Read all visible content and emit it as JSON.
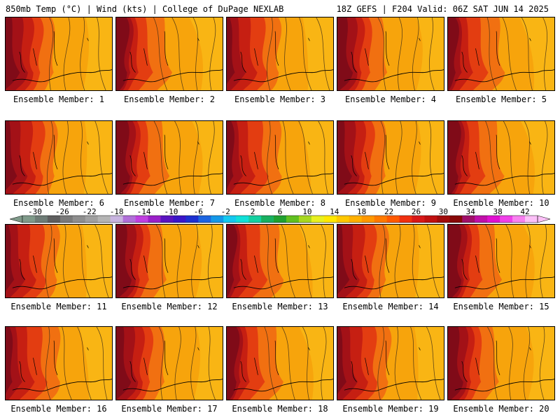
{
  "header": {
    "left_text": "850mb Temp (°C) | Wind (kts) | College of DuPage NEXLAB",
    "right_text": "18Z GEFS | F204 Valid: 06Z SAT JUN 14 2025"
  },
  "panels": [
    {
      "caption": "Ensemble Member: 1"
    },
    {
      "caption": "Ensemble Member: 2"
    },
    {
      "caption": "Ensemble Member: 3"
    },
    {
      "caption": "Ensemble Member: 4"
    },
    {
      "caption": "Ensemble Member: 5"
    },
    {
      "caption": "Ensemble Member: 6"
    },
    {
      "caption": "Ensemble Member: 7"
    },
    {
      "caption": "Ensemble Member: 8"
    },
    {
      "caption": "Ensemble Member: 9"
    },
    {
      "caption": "Ensemble Member: 10"
    },
    {
      "caption": "Ensemble Member: 11"
    },
    {
      "caption": "Ensemble Member: 12"
    },
    {
      "caption": "Ensemble Member: 13"
    },
    {
      "caption": "Ensemble Member: 14"
    },
    {
      "caption": "Ensemble Member: 15"
    },
    {
      "caption": "Ensemble Member: 16"
    },
    {
      "caption": "Ensemble Member: 17"
    },
    {
      "caption": "Ensemble Member: 18"
    },
    {
      "caption": "Ensemble Member: 19"
    },
    {
      "caption": "Ensemble Member: 20"
    }
  ],
  "colorbar": {
    "tick_labels": [
      "-30",
      "-26",
      "-22",
      "-18",
      "-14",
      "-10",
      "-6",
      "-2",
      "2",
      "6",
      "10",
      "14",
      "18",
      "22",
      "26",
      "30",
      "34",
      "38",
      "42"
    ],
    "colors": [
      "#7f9a8a",
      "#6e7c76",
      "#5e5e5e",
      "#7a7a7a",
      "#8e8e8e",
      "#a0a0a0",
      "#b4b4b4",
      "#c8b4e0",
      "#b070d8",
      "#c040e0",
      "#9a20c8",
      "#5a14c0",
      "#3a16c8",
      "#1c30d0",
      "#1c64e0",
      "#1498e8",
      "#14c8f0",
      "#10e0d8",
      "#14d0a0",
      "#18b060",
      "#20a030",
      "#60c020",
      "#a8d820",
      "#e8f020",
      "#ffe800",
      "#ffc800",
      "#ffb000",
      "#ff9800",
      "#ff7a00",
      "#ff5a00",
      "#f03010",
      "#d81818",
      "#c01010",
      "#a00c0c",
      "#880808",
      "#a0106a",
      "#c010a8",
      "#e010d0",
      "#f040e8",
      "#f880f0",
      "#fcc0f8"
    ]
  },
  "map": {
    "colors": {
      "warm_base": "#f7a40c",
      "hot_1": "#ef6a12",
      "hot_2": "#e23a12",
      "hot_3": "#c41d13",
      "hot_4": "#9e1018",
      "hot_5": "#70081a",
      "cool": "#fbc21c",
      "line": "#3a2a18"
    }
  }
}
